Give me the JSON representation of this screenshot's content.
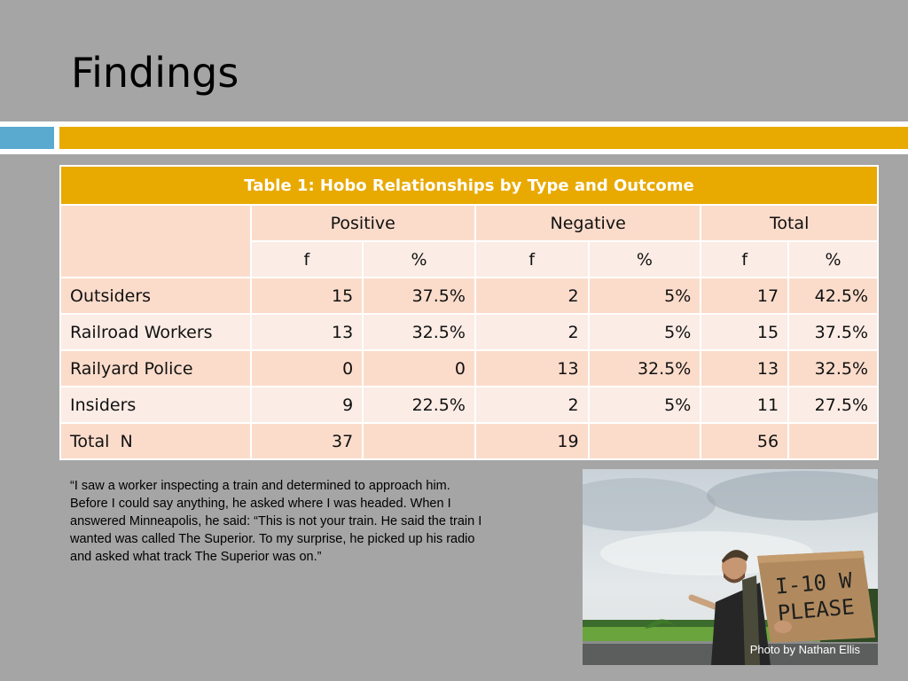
{
  "slide": {
    "title": "Findings"
  },
  "table": {
    "caption": "Table 1: Hobo Relationships by Type and Outcome",
    "groups": [
      "Positive",
      "Negative",
      "Total"
    ],
    "subheaders": [
      "f",
      "%",
      "f",
      "%",
      "f",
      "%"
    ],
    "rows": [
      {
        "label": "Outsiders",
        "cells": [
          "15",
          "37.5%",
          "2",
          "5%",
          "17",
          "42.5%"
        ]
      },
      {
        "label": "Railroad Workers",
        "cells": [
          "13",
          "32.5%",
          "2",
          "5%",
          "15",
          "37.5%"
        ]
      },
      {
        "label": "Railyard Police",
        "cells": [
          "0",
          "0",
          "13",
          "32.5%",
          "13",
          "32.5%"
        ]
      },
      {
        "label": "Insiders",
        "cells": [
          "9",
          "22.5%",
          "2",
          "5%",
          "11",
          "27.5%"
        ]
      },
      {
        "label": "Total  N",
        "cells": [
          "37",
          "",
          "19",
          "",
          "56",
          ""
        ]
      }
    ]
  },
  "quote": "“I saw a worker inspecting a train and determined to approach him. Before I could say anything, he asked where I was headed. When I answered Minneapolis, he said: “This is not your train. He said the train I wanted was called The Superior. To my surprise, he picked up his radio and asked what track The Superior was on.”",
  "photo": {
    "sign_line1": "I-10 W",
    "sign_line2": "PLEASE",
    "credit": "Photo by Nathan Ellis"
  }
}
